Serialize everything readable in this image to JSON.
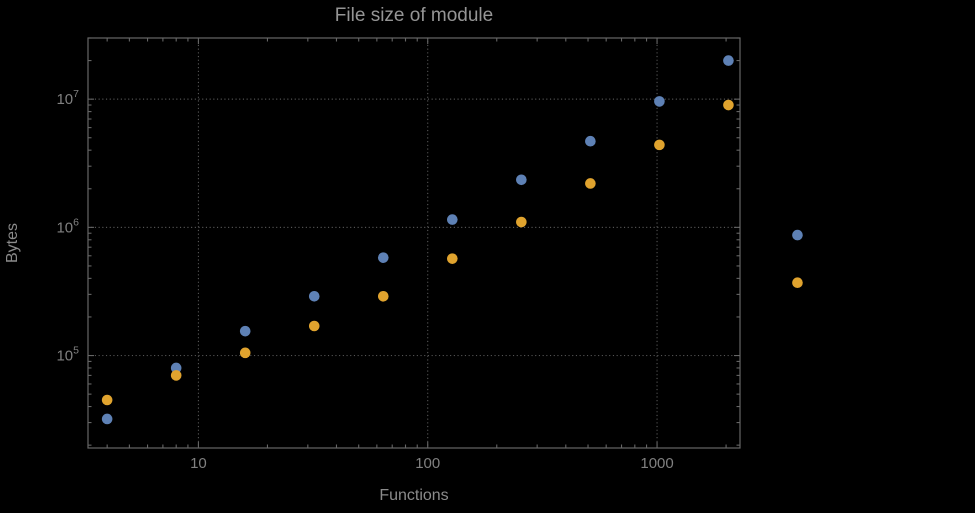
{
  "chart_data": {
    "type": "scatter",
    "title": "File size of module",
    "xlabel": "Functions",
    "ylabel": "Bytes",
    "x_scale": "log",
    "y_scale": "log",
    "grid": "dotted",
    "legend": "none",
    "x": [
      4,
      8,
      16,
      32,
      64,
      128,
      256,
      512,
      1024,
      2048,
      4096
    ],
    "series": [
      {
        "name": "blue",
        "color": "#5e81b5",
        "values": [
          32000,
          80000,
          155000,
          290000,
          580000,
          1150000,
          2350000,
          4700000,
          9600000,
          20000000,
          870000
        ]
      },
      {
        "name": "orange",
        "color": "#e0a32e",
        "values": [
          45000,
          70000,
          105000,
          170000,
          290000,
          570000,
          1100000,
          2200000,
          4400000,
          9000000,
          370000
        ]
      }
    ],
    "x_axis": {
      "min": 3.3,
      "max": 2300,
      "major_ticks": [
        10,
        100,
        1000
      ],
      "tick_labels": [
        "10",
        "100",
        "1000"
      ]
    },
    "y_axis": {
      "min": 19000,
      "max": 30000000,
      "major_ticks": [
        100000,
        1000000,
        10000000
      ],
      "tick_labels": [
        "10^5",
        "10^6",
        "10^7"
      ]
    },
    "colors": {
      "frame": "#666666",
      "grid": "#5a5a5a",
      "text": "#8b8b8b",
      "background": "#000000"
    }
  }
}
